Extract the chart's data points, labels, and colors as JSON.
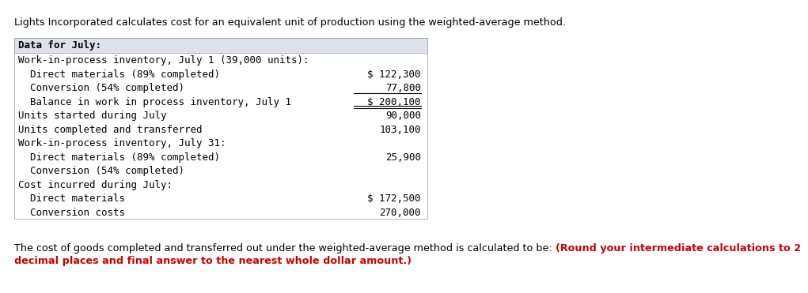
{
  "header_text": "Lights Incorporated calculates cost for an equivalent unit of production using the weighted-average method.",
  "footer_normal": "The cost of goods completed and transferred out under the weighted-average method is calculated to be: ",
  "footer_bold_red_line1": "(Round your intermediate calculations to 2",
  "footer_bold_red_line2": "decimal places and final answer to the nearest whole dollar amount.)",
  "table_header": "Data for July:",
  "table_header_bg": "#dde1ea",
  "rows": [
    {
      "label": "Work-in-process inventory, July 1 (39,000 units):",
      "value": "",
      "underline": false,
      "double_underline": false
    },
    {
      "label": "  Direct materials (89% completed)",
      "value": "$ 122,300",
      "underline": false,
      "double_underline": false
    },
    {
      "label": "  Conversion (54% completed)",
      "value": "77,800",
      "underline": true,
      "double_underline": false
    },
    {
      "label": "  Balance in work in process inventory, July 1",
      "value": "$ 200,100",
      "underline": false,
      "double_underline": true
    },
    {
      "label": "Units started during July",
      "value": "90,000",
      "underline": false,
      "double_underline": false
    },
    {
      "label": "Units completed and transferred",
      "value": "103,100",
      "underline": false,
      "double_underline": false
    },
    {
      "label": "Work-in-process inventory, July 31:",
      "value": "",
      "underline": false,
      "double_underline": false
    },
    {
      "label": "  Direct materials (89% completed)",
      "value": "25,900",
      "underline": false,
      "double_underline": false
    },
    {
      "label": "  Conversion (54% completed)",
      "value": "",
      "underline": false,
      "double_underline": false
    },
    {
      "label": "Cost incurred during July:",
      "value": "",
      "underline": false,
      "double_underline": false
    },
    {
      "label": "  Direct materials",
      "value": "$ 172,500",
      "underline": false,
      "double_underline": false
    },
    {
      "label": "  Conversion costs",
      "value": "270,000",
      "underline": false,
      "double_underline": false
    }
  ],
  "text_color": "#000000",
  "red_color": "#cc0000",
  "font_size": 9.0,
  "header_font_size": 9.2,
  "footer_font_size": 9.2
}
